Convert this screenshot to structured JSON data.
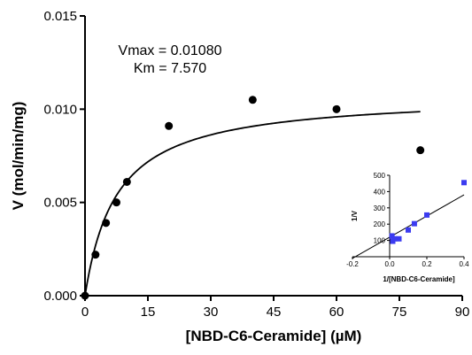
{
  "chart_data": [
    {
      "type": "scatter",
      "xlabel": "[NBD-C6-Ceramide] (µM)",
      "ylabel": "V (mol/min/mg)",
      "xlim": [
        0,
        90
      ],
      "ylim": [
        0,
        0.015
      ],
      "x_ticks": [
        "0",
        "15",
        "30",
        "45",
        "60",
        "75",
        "90"
      ],
      "y_ticks": [
        "0.000",
        "0.005",
        "0.010",
        "0.015"
      ],
      "grid": false,
      "annotations": [
        "Vmax = 0.01080",
        "Km = 7.570"
      ],
      "fit": {
        "model": "Michaelis-Menten",
        "Vmax": 0.0108,
        "Km": 7.57,
        "x_range": [
          0,
          80
        ]
      },
      "series": [
        {
          "marker": "circle",
          "color": "#000000",
          "points": [
            {
              "x": 0,
              "y": 0.0
            },
            {
              "x": 2.5,
              "y": 0.0022
            },
            {
              "x": 5,
              "y": 0.0039
            },
            {
              "x": 7.5,
              "y": 0.005
            },
            {
              "x": 10,
              "y": 0.0061
            },
            {
              "x": 20,
              "y": 0.0091
            },
            {
              "x": 40,
              "y": 0.0105
            },
            {
              "x": 60,
              "y": 0.01
            },
            {
              "x": 80,
              "y": 0.0078
            }
          ]
        }
      ]
    },
    {
      "type": "scatter",
      "xlabel": "1/[NBD-C6-Ceramide]",
      "ylabel": "1/V",
      "xlim": [
        -0.2,
        0.4
      ],
      "ylim": [
        0,
        500
      ],
      "x_ticks": [
        "-0.2",
        "0.0",
        "0.2",
        "0.4"
      ],
      "y_ticks": [
        "100",
        "200",
        "300",
        "400",
        "500"
      ],
      "grid": false,
      "fit": {
        "model": "linear",
        "x_range": [
          -0.2,
          0.4
        ],
        "y_at_xmin": -10,
        "y_at_xmax": 380
      },
      "series": [
        {
          "marker": "square",
          "color": "#3b3bf0",
          "points": [
            {
              "x": 0.0125,
              "y": 128
            },
            {
              "x": 0.0167,
              "y": 95
            },
            {
              "x": 0.025,
              "y": 110
            },
            {
              "x": 0.05,
              "y": 110
            },
            {
              "x": 0.1,
              "y": 164
            },
            {
              "x": 0.133,
              "y": 203
            },
            {
              "x": 0.2,
              "y": 256
            },
            {
              "x": 0.4,
              "y": 455
            }
          ]
        }
      ]
    }
  ]
}
